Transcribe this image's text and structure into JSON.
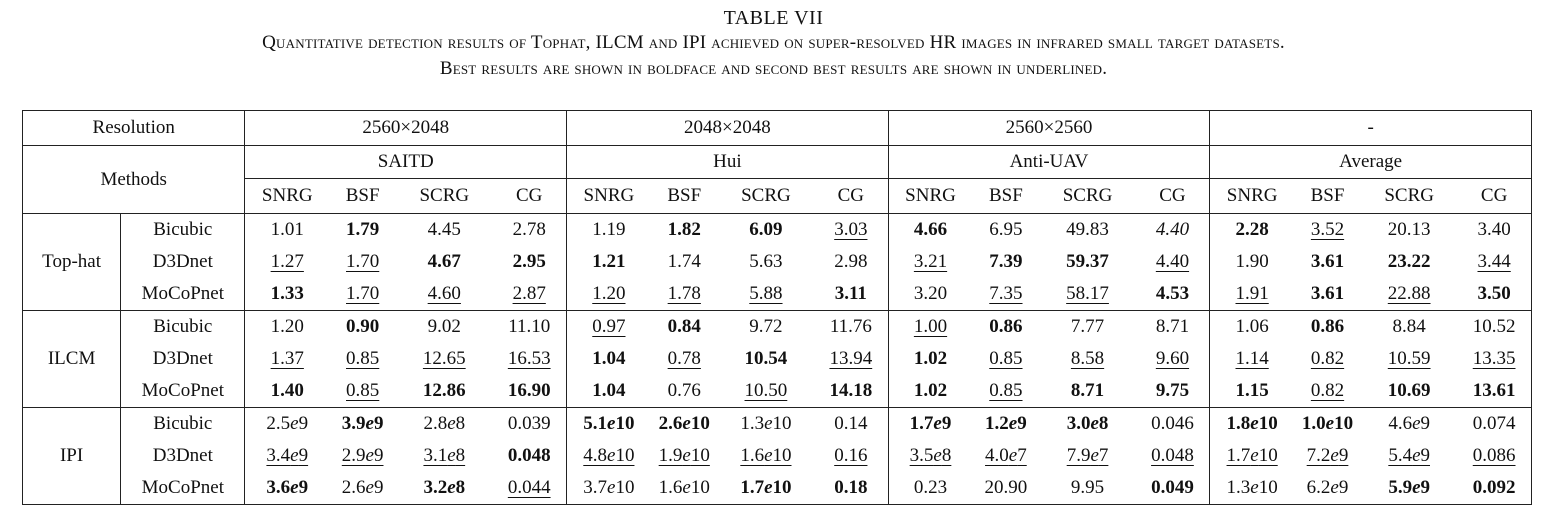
{
  "caption": {
    "title": "TABLE VII",
    "line1": "Quantitative detection results of Tophat, ILCM and IPI achieved on super-resolved HR images in infrared small target datasets.",
    "line2": "Best results are shown in boldface and second best results are shown in underlined."
  },
  "header": {
    "resolution_label": "Resolution",
    "methods_label": "Methods",
    "resolutions": [
      "2560×2048",
      "2048×2048",
      "2560×2560",
      "-"
    ],
    "datasets": [
      "SAITD",
      "Hui",
      "Anti-UAV",
      "Average"
    ],
    "metrics": [
      "SNRG",
      "BSF",
      "SCRG",
      "CG"
    ]
  },
  "groups": [
    {
      "name": "Top-hat",
      "rows": [
        {
          "method": "Bicubic",
          "cells": [
            {
              "v": "1.01"
            },
            {
              "v": "1.79",
              "b": true
            },
            {
              "v": "4.45"
            },
            {
              "v": "2.78"
            },
            {
              "v": "1.19"
            },
            {
              "v": "1.82",
              "b": true
            },
            {
              "v": "6.09",
              "b": true
            },
            {
              "v": "3.03",
              "u": true
            },
            {
              "v": "4.66",
              "b": true
            },
            {
              "v": "6.95"
            },
            {
              "v": "49.83"
            },
            {
              "v": "4.40",
              "i": true
            },
            {
              "v": "2.28",
              "b": true
            },
            {
              "v": "3.52",
              "u": true
            },
            {
              "v": "20.13"
            },
            {
              "v": "3.40"
            }
          ]
        },
        {
          "method": "D3Dnet",
          "cells": [
            {
              "v": "1.27",
              "u": true
            },
            {
              "v": "1.70",
              "u": true
            },
            {
              "v": "4.67",
              "b": true
            },
            {
              "v": "2.95",
              "b": true
            },
            {
              "v": "1.21",
              "b": true
            },
            {
              "v": "1.74"
            },
            {
              "v": "5.63"
            },
            {
              "v": "2.98"
            },
            {
              "v": "3.21",
              "u": true
            },
            {
              "v": "7.39",
              "b": true
            },
            {
              "v": "59.37",
              "b": true
            },
            {
              "v": "4.40",
              "u": true
            },
            {
              "v": "1.90"
            },
            {
              "v": "3.61",
              "b": true
            },
            {
              "v": "23.22",
              "b": true
            },
            {
              "v": "3.44",
              "u": true
            }
          ]
        },
        {
          "method": "MoCoPnet",
          "cells": [
            {
              "v": "1.33",
              "b": true
            },
            {
              "v": "1.70",
              "u": true
            },
            {
              "v": "4.60",
              "u": true
            },
            {
              "v": "2.87",
              "u": true
            },
            {
              "v": "1.20",
              "u": true
            },
            {
              "v": "1.78",
              "u": true
            },
            {
              "v": "5.88",
              "u": true
            },
            {
              "v": "3.11",
              "b": true
            },
            {
              "v": "3.20"
            },
            {
              "v": "7.35",
              "u": true
            },
            {
              "v": "58.17",
              "u": true
            },
            {
              "v": "4.53",
              "b": true
            },
            {
              "v": "1.91",
              "u": true
            },
            {
              "v": "3.61",
              "b": true
            },
            {
              "v": "22.88",
              "u": true
            },
            {
              "v": "3.50",
              "b": true
            }
          ]
        }
      ]
    },
    {
      "name": "ILCM",
      "rows": [
        {
          "method": "Bicubic",
          "cells": [
            {
              "v": "1.20"
            },
            {
              "v": "0.90",
              "b": true
            },
            {
              "v": "9.02"
            },
            {
              "v": "11.10"
            },
            {
              "v": "0.97",
              "u": true
            },
            {
              "v": "0.84",
              "b": true
            },
            {
              "v": "9.72"
            },
            {
              "v": "11.76"
            },
            {
              "v": "1.00",
              "u": true
            },
            {
              "v": "0.86",
              "b": true
            },
            {
              "v": "7.77"
            },
            {
              "v": "8.71"
            },
            {
              "v": "1.06"
            },
            {
              "v": "0.86",
              "b": true
            },
            {
              "v": "8.84"
            },
            {
              "v": "10.52"
            }
          ]
        },
        {
          "method": "D3Dnet",
          "cells": [
            {
              "v": "1.37",
              "u": true
            },
            {
              "v": "0.85",
              "u": true
            },
            {
              "v": "12.65",
              "u": true
            },
            {
              "v": "16.53",
              "u": true
            },
            {
              "v": "1.04",
              "b": true
            },
            {
              "v": "0.78",
              "u": true
            },
            {
              "v": "10.54",
              "b": true
            },
            {
              "v": "13.94",
              "u": true
            },
            {
              "v": "1.02",
              "b": true
            },
            {
              "v": "0.85",
              "u": true
            },
            {
              "v": "8.58",
              "u": true
            },
            {
              "v": "9.60",
              "u": true
            },
            {
              "v": "1.14",
              "u": true
            },
            {
              "v": "0.82",
              "u": true
            },
            {
              "v": "10.59",
              "u": true
            },
            {
              "v": "13.35",
              "u": true
            }
          ]
        },
        {
          "method": "MoCoPnet",
          "cells": [
            {
              "v": "1.40",
              "b": true
            },
            {
              "v": "0.85",
              "u": true
            },
            {
              "v": "12.86",
              "b": true
            },
            {
              "v": "16.90",
              "b": true
            },
            {
              "v": "1.04",
              "b": true
            },
            {
              "v": "0.76"
            },
            {
              "v": "10.50",
              "u": true
            },
            {
              "v": "14.18",
              "b": true
            },
            {
              "v": "1.02",
              "b": true
            },
            {
              "v": "0.85",
              "u": true
            },
            {
              "v": "8.71",
              "b": true
            },
            {
              "v": "9.75",
              "b": true
            },
            {
              "v": "1.15",
              "b": true
            },
            {
              "v": "0.82",
              "u": true
            },
            {
              "v": "10.69",
              "b": true
            },
            {
              "v": "13.61",
              "b": true
            }
          ]
        }
      ]
    },
    {
      "name": "IPI",
      "rows": [
        {
          "method": "Bicubic",
          "cells": [
            {
              "v": "2.5e9"
            },
            {
              "v": "3.9e9",
              "b": true
            },
            {
              "v": "2.8e8"
            },
            {
              "v": "0.039"
            },
            {
              "v": "5.1e10",
              "b": true
            },
            {
              "v": "2.6e10",
              "b": true
            },
            {
              "v": "1.3e10"
            },
            {
              "v": "0.14"
            },
            {
              "v": "1.7e9",
              "b": true
            },
            {
              "v": "1.2e9",
              "b": true
            },
            {
              "v": "3.0e8",
              "b": true
            },
            {
              "v": "0.046"
            },
            {
              "v": "1.8e10",
              "b": true
            },
            {
              "v": "1.0e10",
              "b": true
            },
            {
              "v": "4.6e9"
            },
            {
              "v": "0.074"
            }
          ]
        },
        {
          "method": "D3Dnet",
          "cells": [
            {
              "v": "3.4e9",
              "u": true
            },
            {
              "v": "2.9e9",
              "u": true
            },
            {
              "v": "3.1e8",
              "u": true
            },
            {
              "v": "0.048",
              "b": true
            },
            {
              "v": "4.8e10",
              "u": true
            },
            {
              "v": "1.9e10",
              "u": true
            },
            {
              "v": "1.6e10",
              "u": true
            },
            {
              "v": "0.16",
              "u": true
            },
            {
              "v": "3.5e8",
              "u": true
            },
            {
              "v": "4.0e7",
              "u": true
            },
            {
              "v": "7.9e7",
              "u": true
            },
            {
              "v": "0.048",
              "u": true
            },
            {
              "v": "1.7e10",
              "u": true
            },
            {
              "v": "7.2e9",
              "u": true
            },
            {
              "v": "5.4e9",
              "u": true
            },
            {
              "v": "0.086",
              "u": true
            }
          ]
        },
        {
          "method": "MoCoPnet",
          "cells": [
            {
              "v": "3.6e9",
              "b": true
            },
            {
              "v": "2.6e9"
            },
            {
              "v": "3.2e8",
              "b": true
            },
            {
              "v": "0.044",
              "u": true
            },
            {
              "v": "3.7e10"
            },
            {
              "v": "1.6e10"
            },
            {
              "v": "1.7e10",
              "b": true
            },
            {
              "v": "0.18",
              "b": true
            },
            {
              "v": "0.23"
            },
            {
              "v": "20.90"
            },
            {
              "v": "9.95"
            },
            {
              "v": "0.049",
              "b": true
            },
            {
              "v": "1.3e10"
            },
            {
              "v": "6.2e9"
            },
            {
              "v": "5.9e9",
              "b": true
            },
            {
              "v": "0.092",
              "b": true
            }
          ]
        }
      ]
    }
  ]
}
